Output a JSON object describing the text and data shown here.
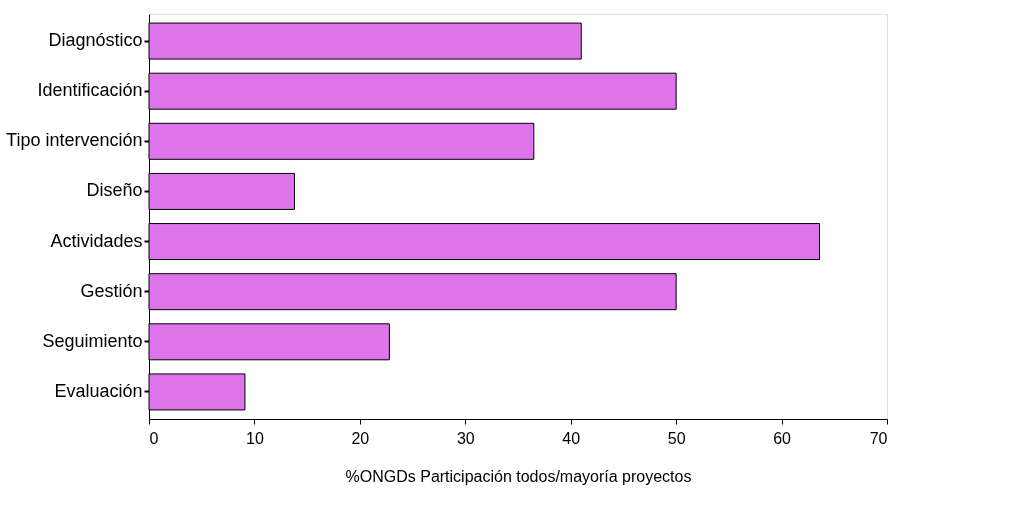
{
  "chart_data": {
    "type": "bar",
    "orientation": "horizontal",
    "xlabel": "%ONGDs Participación todos/mayoría proyectos",
    "categories": [
      "Diagnóstico",
      "Identificación",
      "Tipo intervención",
      "Diseño",
      "Actividades",
      "Gestión",
      "Seguimiento",
      "Evaluación"
    ],
    "values": [
      41,
      50,
      36.5,
      13.8,
      63.6,
      50,
      22.8,
      9.1
    ],
    "color": "#dd74ea",
    "xlim": [
      0,
      70
    ],
    "xticks": [
      0,
      10,
      20,
      30,
      40,
      50,
      60,
      70
    ],
    "grid": false
  }
}
